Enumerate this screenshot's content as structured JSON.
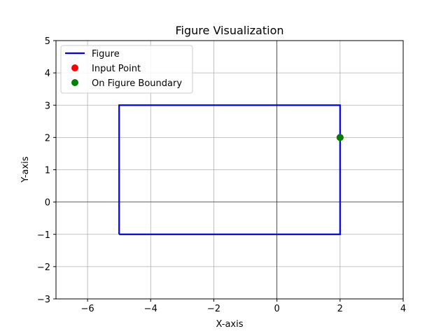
{
  "chart_data": {
    "type": "line",
    "title": "Figure Visualization",
    "xlabel": "X-axis",
    "ylabel": "Y-axis",
    "xlim": [
      -7,
      4
    ],
    "ylim": [
      -3,
      5
    ],
    "x_ticks": [
      -6,
      -4,
      -2,
      0,
      2,
      4
    ],
    "y_ticks": [
      -3,
      -2,
      -1,
      0,
      1,
      2,
      3,
      4,
      5
    ],
    "x_tick_labels": [
      "−6",
      "−4",
      "−2",
      "0",
      "2",
      "4"
    ],
    "y_tick_labels": [
      "−3",
      "−2",
      "−1",
      "0",
      "1",
      "2",
      "3",
      "4",
      "5"
    ],
    "grid": true,
    "legend_position": "top-left",
    "legend": [
      {
        "label": "Figure",
        "marker": "line",
        "color": "#0000ff"
      },
      {
        "label": "Input Point",
        "marker": "dot",
        "color": "#ff0000"
      },
      {
        "label": "On Figure Boundary",
        "marker": "dot",
        "color": "#008000"
      }
    ],
    "series": [
      {
        "name": "Figure",
        "kind": "line",
        "color": "#0000ff",
        "points": [
          [
            -5,
            -1
          ],
          [
            2,
            -1
          ],
          [
            2,
            3
          ],
          [
            -5,
            3
          ],
          [
            -5,
            -1
          ]
        ]
      },
      {
        "name": "Input Point",
        "kind": "scatter",
        "color": "#ff0000",
        "points": [
          [
            2,
            2
          ]
        ]
      },
      {
        "name": "On Figure Boundary",
        "kind": "scatter",
        "color": "#008000",
        "points": [
          [
            2,
            2
          ]
        ]
      }
    ]
  }
}
